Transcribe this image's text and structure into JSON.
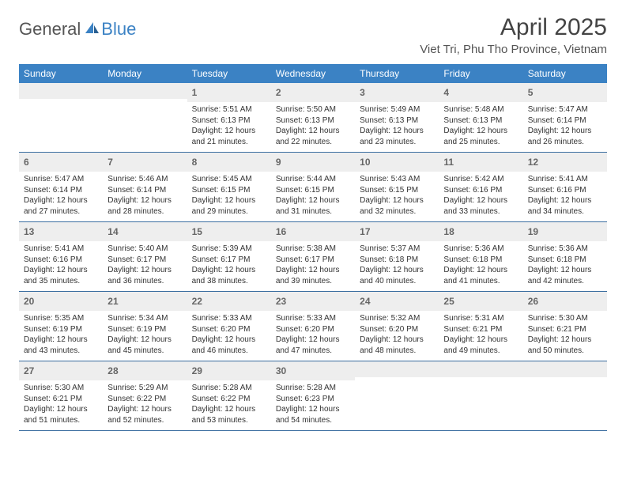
{
  "brand": {
    "part1": "General",
    "part2": "Blue",
    "part1_color": "#555555",
    "part2_color": "#3b82c4"
  },
  "title": "April 2025",
  "location": "Viet Tri, Phu Tho Province, Vietnam",
  "colors": {
    "header_bg": "#3b82c4",
    "header_text": "#ffffff",
    "daynum_bg": "#eeeeee",
    "daynum_text": "#666666",
    "week_border": "#3b6ea0",
    "body_text": "#333333"
  },
  "layout": {
    "columns": 7,
    "rows": 5,
    "leading_blanks": 2
  },
  "dow": [
    "Sunday",
    "Monday",
    "Tuesday",
    "Wednesday",
    "Thursday",
    "Friday",
    "Saturday"
  ],
  "days": [
    {
      "n": "1",
      "sunrise": "Sunrise: 5:51 AM",
      "sunset": "Sunset: 6:13 PM",
      "day1": "Daylight: 12 hours",
      "day2": "and 21 minutes."
    },
    {
      "n": "2",
      "sunrise": "Sunrise: 5:50 AM",
      "sunset": "Sunset: 6:13 PM",
      "day1": "Daylight: 12 hours",
      "day2": "and 22 minutes."
    },
    {
      "n": "3",
      "sunrise": "Sunrise: 5:49 AM",
      "sunset": "Sunset: 6:13 PM",
      "day1": "Daylight: 12 hours",
      "day2": "and 23 minutes."
    },
    {
      "n": "4",
      "sunrise": "Sunrise: 5:48 AM",
      "sunset": "Sunset: 6:13 PM",
      "day1": "Daylight: 12 hours",
      "day2": "and 25 minutes."
    },
    {
      "n": "5",
      "sunrise": "Sunrise: 5:47 AM",
      "sunset": "Sunset: 6:14 PM",
      "day1": "Daylight: 12 hours",
      "day2": "and 26 minutes."
    },
    {
      "n": "6",
      "sunrise": "Sunrise: 5:47 AM",
      "sunset": "Sunset: 6:14 PM",
      "day1": "Daylight: 12 hours",
      "day2": "and 27 minutes."
    },
    {
      "n": "7",
      "sunrise": "Sunrise: 5:46 AM",
      "sunset": "Sunset: 6:14 PM",
      "day1": "Daylight: 12 hours",
      "day2": "and 28 minutes."
    },
    {
      "n": "8",
      "sunrise": "Sunrise: 5:45 AM",
      "sunset": "Sunset: 6:15 PM",
      "day1": "Daylight: 12 hours",
      "day2": "and 29 minutes."
    },
    {
      "n": "9",
      "sunrise": "Sunrise: 5:44 AM",
      "sunset": "Sunset: 6:15 PM",
      "day1": "Daylight: 12 hours",
      "day2": "and 31 minutes."
    },
    {
      "n": "10",
      "sunrise": "Sunrise: 5:43 AM",
      "sunset": "Sunset: 6:15 PM",
      "day1": "Daylight: 12 hours",
      "day2": "and 32 minutes."
    },
    {
      "n": "11",
      "sunrise": "Sunrise: 5:42 AM",
      "sunset": "Sunset: 6:16 PM",
      "day1": "Daylight: 12 hours",
      "day2": "and 33 minutes."
    },
    {
      "n": "12",
      "sunrise": "Sunrise: 5:41 AM",
      "sunset": "Sunset: 6:16 PM",
      "day1": "Daylight: 12 hours",
      "day2": "and 34 minutes."
    },
    {
      "n": "13",
      "sunrise": "Sunrise: 5:41 AM",
      "sunset": "Sunset: 6:16 PM",
      "day1": "Daylight: 12 hours",
      "day2": "and 35 minutes."
    },
    {
      "n": "14",
      "sunrise": "Sunrise: 5:40 AM",
      "sunset": "Sunset: 6:17 PM",
      "day1": "Daylight: 12 hours",
      "day2": "and 36 minutes."
    },
    {
      "n": "15",
      "sunrise": "Sunrise: 5:39 AM",
      "sunset": "Sunset: 6:17 PM",
      "day1": "Daylight: 12 hours",
      "day2": "and 38 minutes."
    },
    {
      "n": "16",
      "sunrise": "Sunrise: 5:38 AM",
      "sunset": "Sunset: 6:17 PM",
      "day1": "Daylight: 12 hours",
      "day2": "and 39 minutes."
    },
    {
      "n": "17",
      "sunrise": "Sunrise: 5:37 AM",
      "sunset": "Sunset: 6:18 PM",
      "day1": "Daylight: 12 hours",
      "day2": "and 40 minutes."
    },
    {
      "n": "18",
      "sunrise": "Sunrise: 5:36 AM",
      "sunset": "Sunset: 6:18 PM",
      "day1": "Daylight: 12 hours",
      "day2": "and 41 minutes."
    },
    {
      "n": "19",
      "sunrise": "Sunrise: 5:36 AM",
      "sunset": "Sunset: 6:18 PM",
      "day1": "Daylight: 12 hours",
      "day2": "and 42 minutes."
    },
    {
      "n": "20",
      "sunrise": "Sunrise: 5:35 AM",
      "sunset": "Sunset: 6:19 PM",
      "day1": "Daylight: 12 hours",
      "day2": "and 43 minutes."
    },
    {
      "n": "21",
      "sunrise": "Sunrise: 5:34 AM",
      "sunset": "Sunset: 6:19 PM",
      "day1": "Daylight: 12 hours",
      "day2": "and 45 minutes."
    },
    {
      "n": "22",
      "sunrise": "Sunrise: 5:33 AM",
      "sunset": "Sunset: 6:20 PM",
      "day1": "Daylight: 12 hours",
      "day2": "and 46 minutes."
    },
    {
      "n": "23",
      "sunrise": "Sunrise: 5:33 AM",
      "sunset": "Sunset: 6:20 PM",
      "day1": "Daylight: 12 hours",
      "day2": "and 47 minutes."
    },
    {
      "n": "24",
      "sunrise": "Sunrise: 5:32 AM",
      "sunset": "Sunset: 6:20 PM",
      "day1": "Daylight: 12 hours",
      "day2": "and 48 minutes."
    },
    {
      "n": "25",
      "sunrise": "Sunrise: 5:31 AM",
      "sunset": "Sunset: 6:21 PM",
      "day1": "Daylight: 12 hours",
      "day2": "and 49 minutes."
    },
    {
      "n": "26",
      "sunrise": "Sunrise: 5:30 AM",
      "sunset": "Sunset: 6:21 PM",
      "day1": "Daylight: 12 hours",
      "day2": "and 50 minutes."
    },
    {
      "n": "27",
      "sunrise": "Sunrise: 5:30 AM",
      "sunset": "Sunset: 6:21 PM",
      "day1": "Daylight: 12 hours",
      "day2": "and 51 minutes."
    },
    {
      "n": "28",
      "sunrise": "Sunrise: 5:29 AM",
      "sunset": "Sunset: 6:22 PM",
      "day1": "Daylight: 12 hours",
      "day2": "and 52 minutes."
    },
    {
      "n": "29",
      "sunrise": "Sunrise: 5:28 AM",
      "sunset": "Sunset: 6:22 PM",
      "day1": "Daylight: 12 hours",
      "day2": "and 53 minutes."
    },
    {
      "n": "30",
      "sunrise": "Sunrise: 5:28 AM",
      "sunset": "Sunset: 6:23 PM",
      "day1": "Daylight: 12 hours",
      "day2": "and 54 minutes."
    }
  ]
}
